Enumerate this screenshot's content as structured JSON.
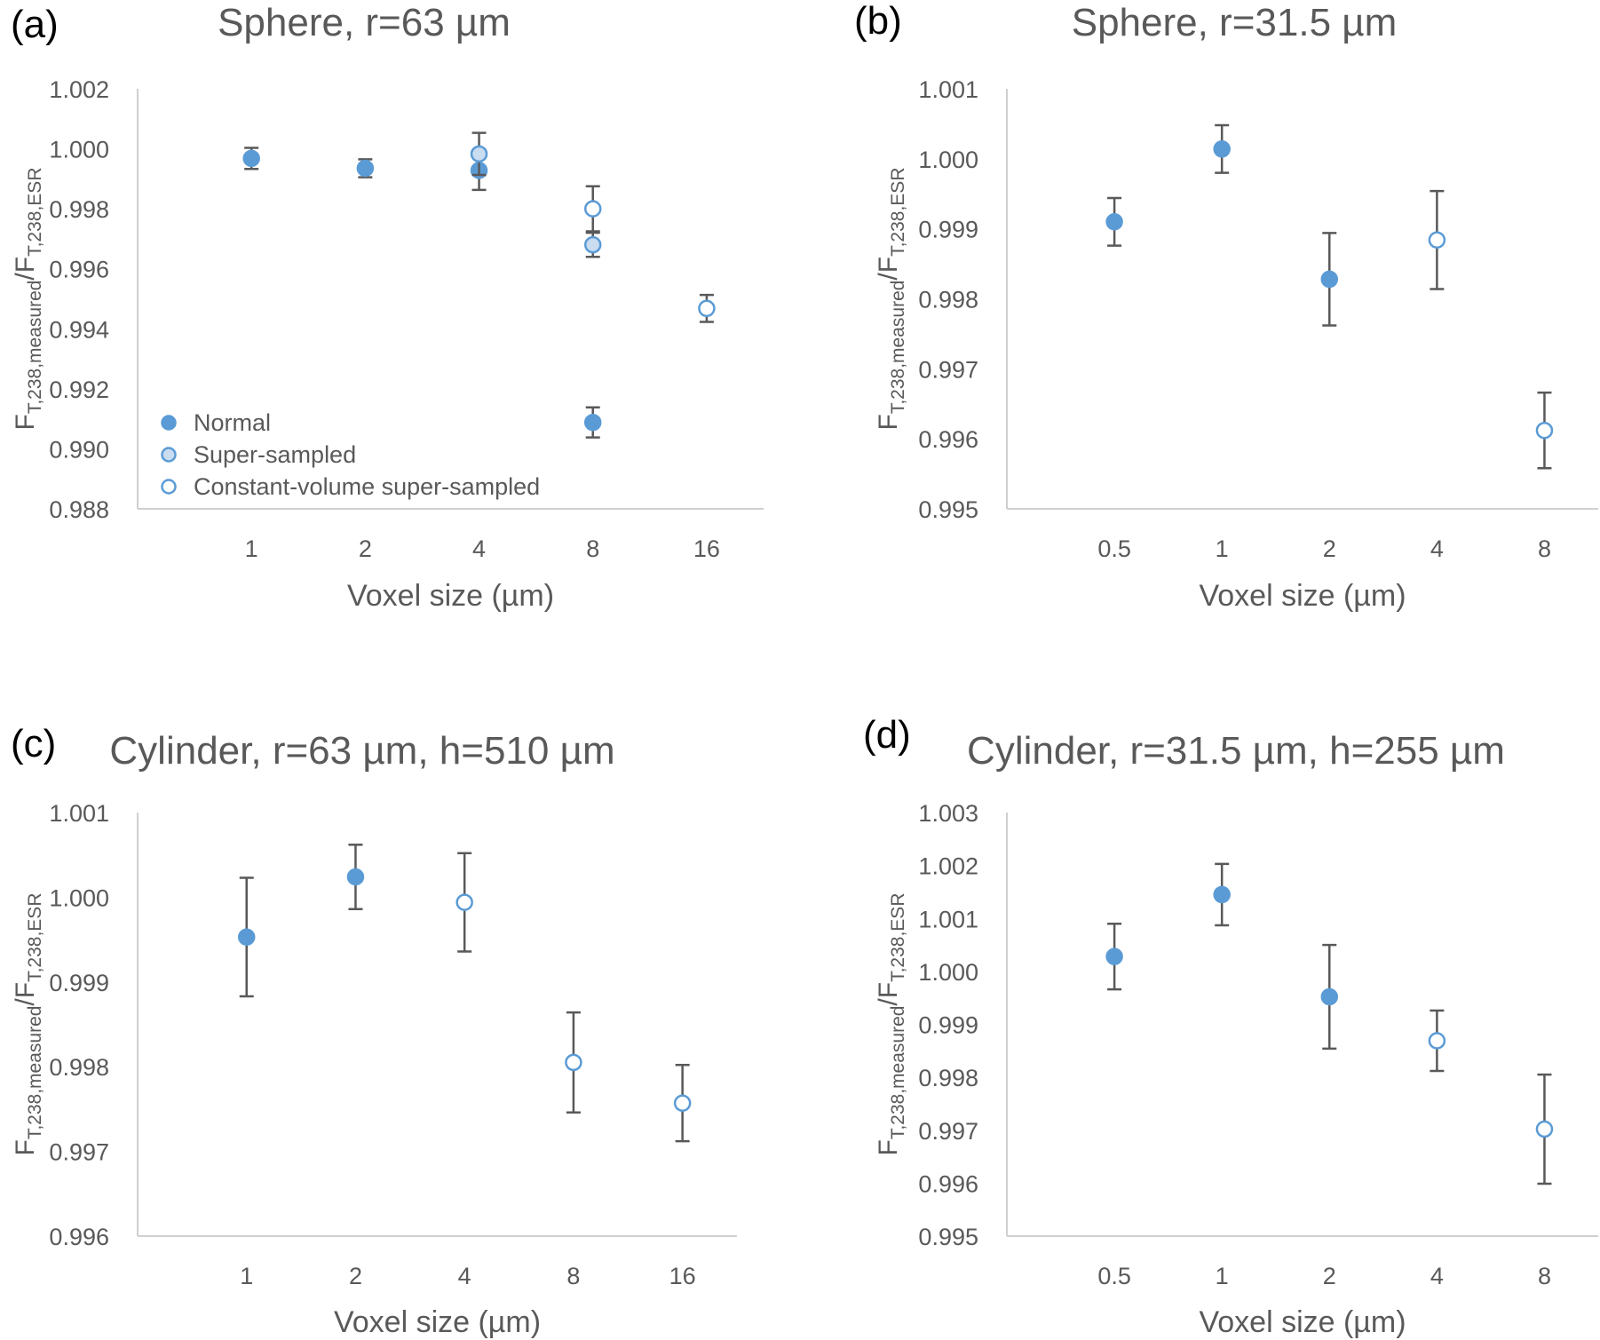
{
  "colors": {
    "marker": "#5b9bd5",
    "super_fill": "#c9dcf0",
    "errorbar": "#595959",
    "axis": "#d0d0d0",
    "text": "#595959"
  },
  "chart_data": [
    {
      "type": "scatter",
      "panel": "(a)",
      "title": "Sphere, r=63 µm",
      "xlabel": "Voxel size (µm)",
      "ylabel": "F_T,238,measured/F_T,238,ESR",
      "categories": [
        "1",
        "2",
        "4",
        "8",
        "16"
      ],
      "ylim": [
        0.988,
        1.002
      ],
      "yticks": [
        "1.002",
        "1.000",
        "0.998",
        "0.996",
        "0.994",
        "0.992",
        "0.990",
        "0.988"
      ],
      "ytick_values": [
        1.002,
        1.0,
        0.998,
        0.996,
        0.994,
        0.992,
        0.99,
        0.988
      ],
      "legend": {
        "position": "bottom-left",
        "entries": [
          "Normal",
          "Super-sampled",
          "Constant-volume super-sampled"
        ]
      },
      "series": [
        {
          "name": "Normal",
          "style": "filled",
          "points": [
            {
              "x": "1",
              "y": 0.99968,
              "err": 0.00035
            },
            {
              "x": "2",
              "y": 0.99935,
              "err": 0.0003
            },
            {
              "x": "4",
              "y": 0.99928,
              "err": 0.00065
            },
            {
              "x": "8",
              "y": 0.99088,
              "err": 0.0005
            }
          ]
        },
        {
          "name": "Super-sampled",
          "style": "light",
          "points": [
            {
              "x": "4",
              "y": 0.99983,
              "err": 0.0007
            },
            {
              "x": "8",
              "y": 0.9968,
              "err": 0.0004
            }
          ]
        },
        {
          "name": "Constant-volume super-sampled",
          "style": "open",
          "points": [
            {
              "x": "8",
              "y": 0.998,
              "err": 0.00075
            },
            {
              "x": "16",
              "y": 0.99468,
              "err": 0.00045
            }
          ]
        }
      ]
    },
    {
      "type": "scatter",
      "panel": "(b)",
      "title": "Sphere, r=31.5 µm",
      "xlabel": "Voxel size (µm)",
      "ylabel": "F_T,238,measured/F_T,238,ESR",
      "categories": [
        "0.5",
        "1",
        "2",
        "4",
        "8"
      ],
      "ylim": [
        0.995,
        1.001
      ],
      "yticks": [
        "1.001",
        "1.000",
        "0.999",
        "0.998",
        "0.997",
        "0.996",
        "0.995"
      ],
      "ytick_values": [
        1.001,
        1.0,
        0.999,
        0.998,
        0.997,
        0.996,
        0.995
      ],
      "series": [
        {
          "name": "Normal",
          "style": "filled",
          "points": [
            {
              "x": "0.5",
              "y": 0.9991,
              "err": 0.00034
            },
            {
              "x": "1",
              "y": 1.00014,
              "err": 0.00034
            },
            {
              "x": "2",
              "y": 0.99828,
              "err": 0.00066
            }
          ]
        },
        {
          "name": "Constant-volume super-sampled",
          "style": "open",
          "points": [
            {
              "x": "4",
              "y": 0.99884,
              "err": 0.0007
            },
            {
              "x": "8",
              "y": 0.99612,
              "err": 0.00054
            }
          ]
        }
      ]
    },
    {
      "type": "scatter",
      "panel": "(c)",
      "title": "Cylinder, r=63 µm, h=510 µm",
      "xlabel": "Voxel size (µm)",
      "ylabel": "F_T,238,measured/F_T,238,ESR",
      "categories": [
        "1",
        "2",
        "4",
        "8",
        "16"
      ],
      "ylim": [
        0.996,
        1.001
      ],
      "yticks": [
        "1.001",
        "1.000",
        "0.999",
        "0.998",
        "0.997",
        "0.996"
      ],
      "ytick_values": [
        1.001,
        1.0,
        0.999,
        0.998,
        0.997,
        0.996
      ],
      "series": [
        {
          "name": "Normal",
          "style": "filled",
          "points": [
            {
              "x": "1",
              "y": 0.99953,
              "err": 0.0007
            },
            {
              "x": "2",
              "y": 1.00024,
              "err": 0.00038
            }
          ]
        },
        {
          "name": "Constant-volume super-sampled",
          "style": "open",
          "points": [
            {
              "x": "4",
              "y": 0.99994,
              "err": 0.00058
            },
            {
              "x": "8",
              "y": 0.99805,
              "err": 0.00059
            },
            {
              "x": "16",
              "y": 0.99757,
              "err": 0.00045
            }
          ]
        }
      ]
    },
    {
      "type": "scatter",
      "panel": "(d)",
      "title": "Cylinder, r=31.5 µm, h=255 µm",
      "xlabel": "Voxel size (µm)",
      "ylabel": "F_T,238,measured/F_T,238,ESR",
      "categories": [
        "0.5",
        "1",
        "2",
        "4",
        "8"
      ],
      "ylim": [
        0.995,
        1.003
      ],
      "yticks": [
        "1.003",
        "1.002",
        "1.001",
        "1.000",
        "0.999",
        "0.998",
        "0.997",
        "0.996",
        "0.995"
      ],
      "ytick_values": [
        1.003,
        1.002,
        1.001,
        1.0,
        0.999,
        0.998,
        0.997,
        0.996,
        0.995
      ],
      "series": [
        {
          "name": "Normal",
          "style": "filled",
          "points": [
            {
              "x": "0.5",
              "y": 1.00028,
              "err": 0.00062
            },
            {
              "x": "1",
              "y": 1.00145,
              "err": 0.00058
            },
            {
              "x": "2",
              "y": 0.99952,
              "err": 0.00098
            }
          ]
        },
        {
          "name": "Constant-volume super-sampled",
          "style": "open",
          "points": [
            {
              "x": "4",
              "y": 0.99869,
              "err": 0.00057
            },
            {
              "x": "8",
              "y": 0.99702,
              "err": 0.00103
            }
          ]
        }
      ]
    }
  ]
}
